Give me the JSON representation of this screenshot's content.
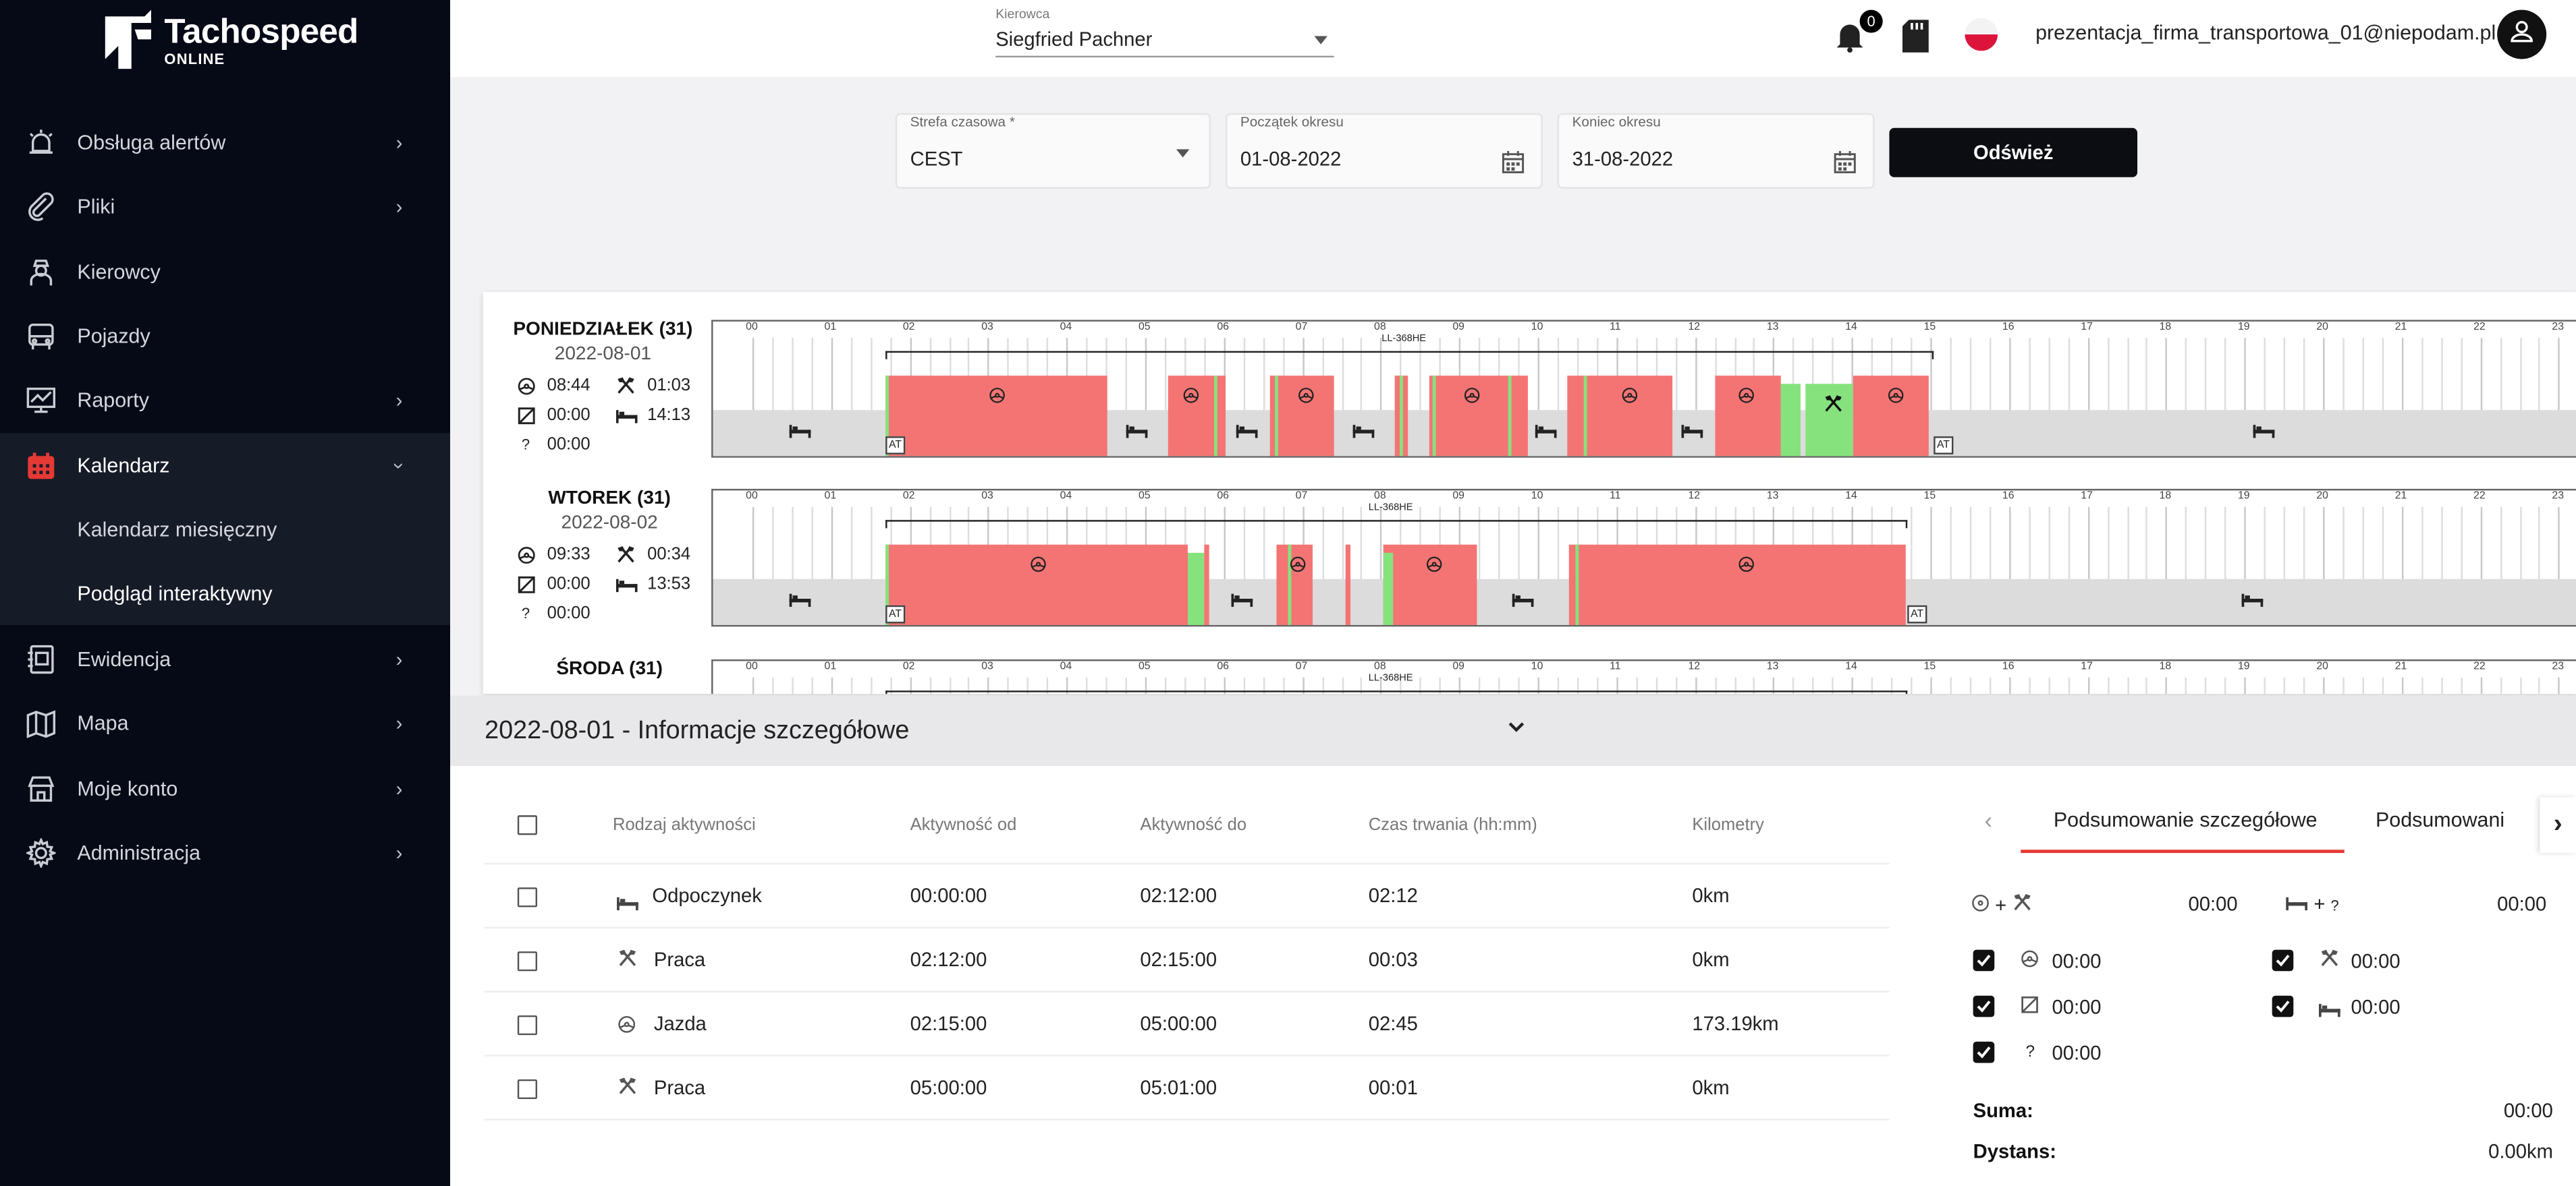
{
  "app": {
    "brand": "Tachospeed",
    "brand_sub": "ONLINE"
  },
  "sidebar": {
    "items": [
      {
        "label": "Obsługa alertów",
        "icon": "alarm-icon"
      },
      {
        "label": "Pliki",
        "icon": "paperclip-icon"
      },
      {
        "label": "Kierowcy",
        "icon": "driver-icon"
      },
      {
        "label": "Pojazdy",
        "icon": "bus-icon"
      },
      {
        "label": "Raporty",
        "icon": "report-icon"
      },
      {
        "label": "Kalendarz",
        "icon": "calendar-icon"
      },
      {
        "label": "Ewidencja",
        "icon": "ledger-icon"
      },
      {
        "label": "Mapa",
        "icon": "map-icon"
      },
      {
        "label": "Moje konto",
        "icon": "store-icon"
      },
      {
        "label": "Administracja",
        "icon": "gear-icon"
      }
    ],
    "sub": [
      "Kalendarz miesięczny",
      "Podgląd interaktywny"
    ]
  },
  "topbar": {
    "driver_caption": "Kierowca",
    "driver_value": "Siegfried Pachner",
    "notifications": "0",
    "email": "prezentacja_firma_transportowa_01@niepodam.pl"
  },
  "filters": {
    "tz_caption": "Strefa czasowa *",
    "tz_value": "CEST",
    "start_caption": "Początek okresu",
    "start_value": "01-08-2022",
    "end_caption": "Koniec okresu",
    "end_value": "31-08-2022",
    "refresh": "Odśwież"
  },
  "hours": [
    "00",
    "01",
    "02",
    "03",
    "04",
    "05",
    "06",
    "07",
    "08",
    "09",
    "10",
    "11",
    "12",
    "13",
    "14",
    "15",
    "16",
    "17",
    "18",
    "19",
    "20",
    "21",
    "22",
    "23"
  ],
  "days": [
    {
      "name": "PONIEDZIAŁEK (31)",
      "date": "2022-08-01",
      "drive": "08:44",
      "work": "01:03",
      "avail": "00:00",
      "rest": "14:13",
      "unknown": "00:00",
      "vehicle": "LL-368HE",
      "at": "AT"
    },
    {
      "name": "WTOREK (31)",
      "date": "2022-08-02",
      "drive": "09:33",
      "work": "00:34",
      "avail": "00:00",
      "rest": "13:53",
      "unknown": "00:00",
      "vehicle": "LL-368HE",
      "at": "AT"
    },
    {
      "name": "ŚRODA (31)",
      "vehicle": "LL-368HE"
    }
  ],
  "details": {
    "title": "2022-08-01 - Informacje szczegółowe",
    "headers": [
      "Rodzaj aktywności",
      "Aktywność od",
      "Aktywność do",
      "Czas trwania (hh:mm)",
      "Kilometry"
    ],
    "rows": [
      {
        "type": "Odpoczynek",
        "icon": "bed-icon",
        "from": "00:00:00",
        "to": "02:12:00",
        "dur": "02:12",
        "km": "0km"
      },
      {
        "type": "Praca",
        "icon": "hammers-icon",
        "from": "02:12:00",
        "to": "02:15:00",
        "dur": "00:03",
        "km": "0km"
      },
      {
        "type": "Jazda",
        "icon": "steering-wheel-icon",
        "from": "02:15:00",
        "to": "05:00:00",
        "dur": "02:45",
        "km": "173.19km"
      },
      {
        "type": "Praca",
        "icon": "hammers-icon",
        "from": "05:00:00",
        "to": "05:01:00",
        "dur": "00:01",
        "km": "0km"
      }
    ]
  },
  "summary": {
    "tab1": "Podsumowanie szczegółowe",
    "tab2": "Podsumowani",
    "drive_work": "00:00",
    "rest_unknown": "00:00",
    "drive": "00:00",
    "work": "00:00",
    "avail": "00:00",
    "rest": "00:00",
    "unknown": "00:00",
    "sum_label": "Suma:",
    "sum_value": "00:00",
    "dist_label": "Dystans:",
    "dist_value": "0.00km"
  },
  "colors": {
    "drive": "#f47474",
    "work": "#86e27d",
    "rest": "#dcdcdc",
    "active_tab": "#e53935",
    "sidebar": "#060a17"
  }
}
